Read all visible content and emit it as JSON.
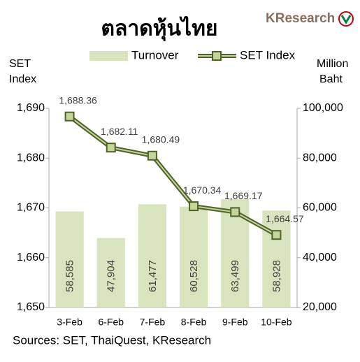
{
  "chart_data": {
    "type": "combo",
    "title": "ตลาดหุ้นไทย",
    "brand": "KResearch",
    "ylabel": [
      "SET",
      "Index"
    ],
    "y2label": [
      "Million",
      "Baht"
    ],
    "source": "Sources: SET, ThaiQuest, KResearch",
    "categories": [
      "3-Feb",
      "6-Feb",
      "7-Feb",
      "8-Feb",
      "9-Feb",
      "10-Feb"
    ],
    "series": [
      {
        "name": "Turnover",
        "type": "bar",
        "axis": "y2",
        "color": "#d7e4bd",
        "values": [
          58585,
          47904,
          61477,
          60528,
          63499,
          58928
        ],
        "value_labels": [
          "58,585",
          "47,904",
          "61,477",
          "60,528",
          "63,499",
          "58,928"
        ]
      },
      {
        "name": "SET Index",
        "type": "line",
        "color": "#4f6228",
        "marker_color": "#c3d69b",
        "values": [
          1688.36,
          1682.11,
          1680.49,
          1670.34,
          1669.17,
          1664.57
        ],
        "value_labels": [
          "1,688.36",
          "1,682.11",
          "1,680.49",
          "1,670.34",
          "1,669.17",
          "1,664.57"
        ]
      }
    ],
    "ylim": [
      1650,
      1690
    ],
    "yticks": [
      {
        "value": 1650,
        "label": "1,650"
      },
      {
        "value": 1660,
        "label": "1,660"
      },
      {
        "value": 1670,
        "label": "1,670"
      },
      {
        "value": 1680,
        "label": "1,680"
      },
      {
        "value": 1690,
        "label": "1,690"
      }
    ],
    "y2lim": [
      20000,
      100000
    ],
    "y2ticks": [
      {
        "value": 20000,
        "label": "20,000"
      },
      {
        "value": 40000,
        "label": "40,000"
      },
      {
        "value": 60000,
        "label": "60,000"
      },
      {
        "value": 80000,
        "label": "80,000"
      },
      {
        "value": 100000,
        "label": "100,000"
      }
    ],
    "grid": false
  }
}
